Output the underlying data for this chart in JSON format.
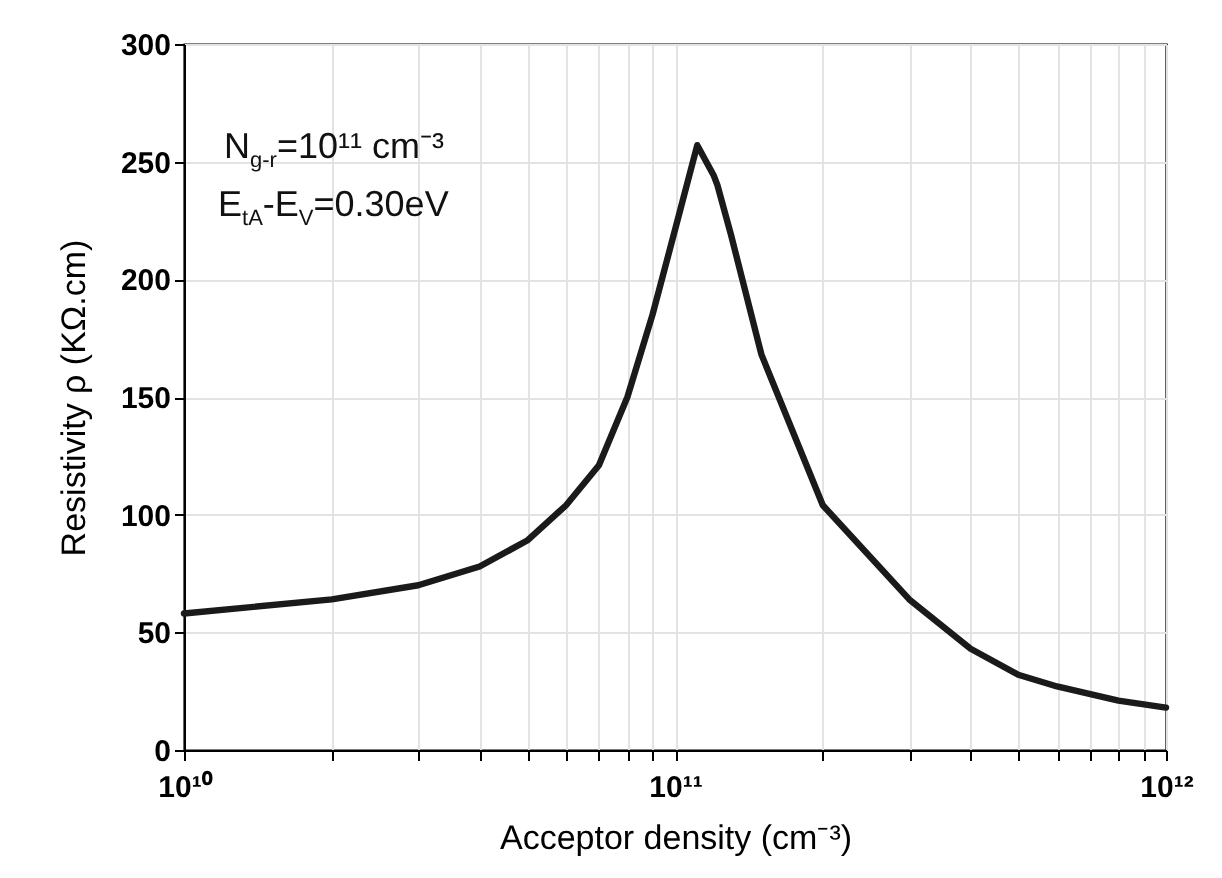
{
  "chart_data": {
    "type": "line",
    "xlabel": "Acceptor density (cm⁻³)",
    "ylabel": "Resistivity ρ (KΩ.cm)",
    "annotations": [
      "N$_{g-r}$=10¹¹ cm⁻³",
      "E$_{tA}$-E$_{V}$=0.30eV"
    ],
    "log": "x",
    "grid": true,
    "marker": "none",
    "line_style": "solid",
    "xlim": [
      10000000000.0,
      1000000000000.0
    ],
    "ylim": [
      0,
      300
    ],
    "yticks": [
      0,
      50,
      100,
      150,
      200,
      250,
      300
    ],
    "xticks": [
      {
        "value": 10000000000.0,
        "label": "10¹⁰"
      },
      {
        "value": 20000000000.0,
        "label": null
      },
      {
        "value": 30000000000.0,
        "label": null
      },
      {
        "value": 40000000000.0,
        "label": null
      },
      {
        "value": 50000000000.0,
        "label": null
      },
      {
        "value": 60000000000.0,
        "label": null
      },
      {
        "value": 70000000000.0,
        "label": null
      },
      {
        "value": 80000000000.0,
        "label": null
      },
      {
        "value": 90000000000.0,
        "label": null
      },
      {
        "value": 100000000000.0,
        "label": "10¹¹"
      },
      {
        "value": 200000000000.0,
        "label": null
      },
      {
        "value": 300000000000.0,
        "label": null
      },
      {
        "value": 400000000000.0,
        "label": null
      },
      {
        "value": 500000000000.0,
        "label": null
      },
      {
        "value": 600000000000.0,
        "label": null
      },
      {
        "value": 700000000000.0,
        "label": null
      },
      {
        "value": 800000000000.0,
        "label": null
      },
      {
        "value": 900000000000.0,
        "label": null
      },
      {
        "value": 1000000000000.0,
        "label": "10¹²"
      }
    ],
    "series": [
      {
        "color": "#1a1a1a",
        "x": [
          10000000000.0,
          20000000000.0,
          30000000000.0,
          40000000000.0,
          50000000000.0,
          60000000000.0,
          70000000000.0,
          80000000000.0,
          90000000000.0,
          100000000000.0,
          111000000000.0,
          120000000000.0,
          122000000000.0,
          130000000000.0,
          150000000000.0,
          200000000000.0,
          300000000000.0,
          400000000000.0,
          500000000000.0,
          600000000000.0,
          800000000000.0,
          1000000000000.0
        ],
        "values": [
          58,
          64,
          70,
          78,
          89,
          104,
          121,
          150,
          185,
          221,
          257,
          244,
          240,
          219,
          168,
          104,
          64,
          43,
          32,
          27,
          21,
          18
        ]
      }
    ]
  }
}
